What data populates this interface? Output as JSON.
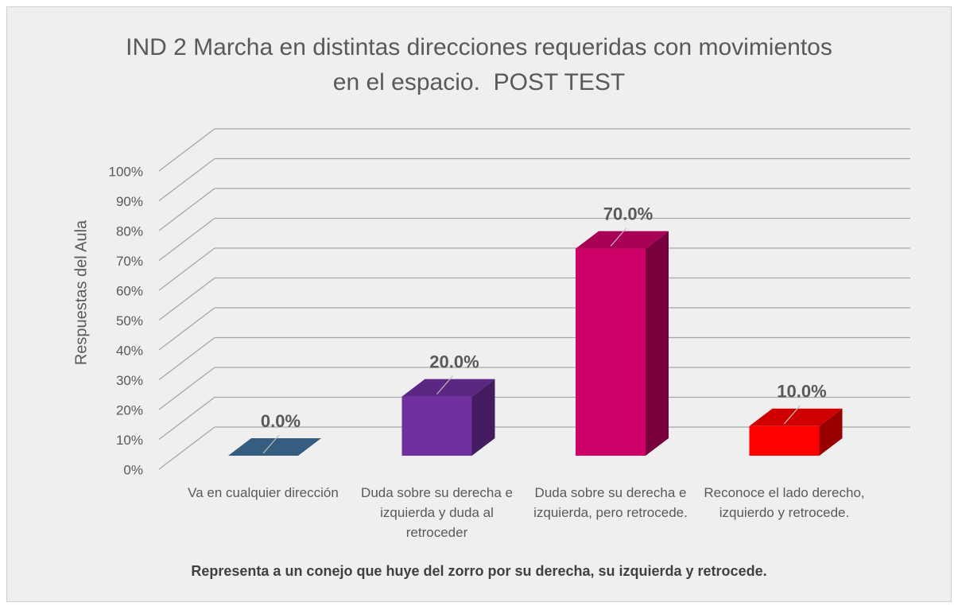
{
  "chart_data": {
    "type": "bar3d",
    "title": "IND 2 Marcha en distintas direcciones requeridas con movimientos  en el espacio.  POST TEST",
    "y_label": "Respuestas del Aula",
    "x_label": "Representa a un conejo que huye del zorro por su derecha, su izquierda y retrocede.",
    "categories": [
      "Va en cualquier dirección",
      "Duda sobre su derecha e izquierda y duda al retroceder",
      "Duda sobre su derecha e izquierda, pero retrocede.",
      "Reconoce el lado derecho, izquierdo y retrocede."
    ],
    "values": [
      0,
      20,
      70,
      10
    ],
    "value_labels": [
      "0.0%",
      "20.0%",
      "70.0%",
      "10.0%"
    ],
    "colors": [
      "#41719c",
      "#7030a0",
      "#cc0066",
      "#ff0000"
    ],
    "ylim": [
      0,
      100
    ],
    "yticks": [
      {
        "value": 0,
        "label": "0%"
      },
      {
        "value": 10,
        "label": "10%"
      },
      {
        "value": 20,
        "label": "20%"
      },
      {
        "value": 30,
        "label": "30%"
      },
      {
        "value": 40,
        "label": "40%"
      },
      {
        "value": 50,
        "label": "50%"
      },
      {
        "value": 60,
        "label": "60%"
      },
      {
        "value": 70,
        "label": "70%"
      },
      {
        "value": 80,
        "label": "80%"
      },
      {
        "value": 90,
        "label": "90%"
      },
      {
        "value": 100,
        "label": "100%"
      }
    ],
    "grid": true
  }
}
